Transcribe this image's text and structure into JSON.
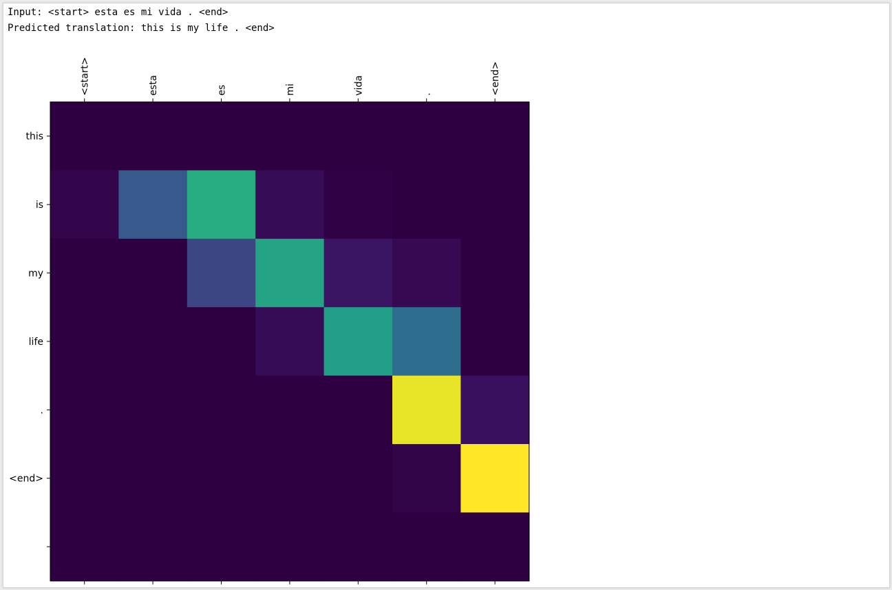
{
  "output": {
    "input_line": "Input: <start> esta es mi vida . <end>",
    "prediction_line": "Predicted translation: this is my life . <end>"
  },
  "colors": {
    "colormap": "viridis",
    "low": "#2f0041",
    "high": "#fde725"
  },
  "chart_data": {
    "type": "heatmap",
    "title": "",
    "x_tick_labels": [
      "<start>",
      "esta",
      "es",
      "mi",
      "vida",
      ".",
      "<end>"
    ],
    "y_tick_labels": [
      "this",
      "is",
      "my",
      "life",
      ".",
      "<end>",
      ""
    ],
    "x_axis_position": "top",
    "x_tick_rotation": 90,
    "grid": false,
    "values": [
      [
        0.0,
        0.0,
        0.0,
        0.0,
        0.0,
        0.0,
        0.0
      ],
      [
        0.03,
        0.28,
        0.62,
        0.06,
        0.01,
        0.0,
        0.0
      ],
      [
        0.0,
        0.0,
        0.22,
        0.58,
        0.1,
        0.05,
        0.0
      ],
      [
        0.0,
        0.0,
        0.0,
        0.06,
        0.56,
        0.36,
        0.0
      ],
      [
        0.0,
        0.0,
        0.0,
        0.0,
        0.0,
        0.97,
        0.08
      ],
      [
        0.0,
        0.0,
        0.0,
        0.0,
        0.0,
        0.02,
        1.0
      ],
      [
        0.0,
        0.0,
        0.0,
        0.0,
        0.0,
        0.0,
        0.0
      ]
    ]
  }
}
